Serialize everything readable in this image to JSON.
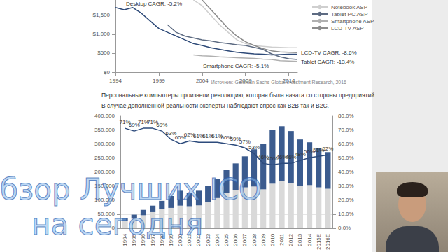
{
  "document": {
    "source": "Источник: Goldman Sachs Global Investment Research, 2016",
    "paragraph": [
      "Персональные компьютеры произвели революцию, которая была начата со стороны предприятий.",
      "В случае дополненной реальности эксперты наблюдают спрос как B2B так и B2C."
    ],
    "overlay": [
      "бзор Лучших ICO",
      "на сегодня"
    ]
  },
  "chart_data": [
    {
      "type": "line",
      "series": [
        {
          "color": "#2e4a78",
          "x": [
            1994,
            1995,
            1996,
            1997,
            1998,
            1999,
            2000,
            2001,
            2002,
            2003,
            2004,
            2005,
            2006,
            2007,
            2008,
            2009,
            2010,
            2011,
            2012,
            2013,
            2014,
            2015
          ],
          "values": [
            1700,
            1640,
            1700,
            1550,
            1350,
            1150,
            1050,
            950,
            850,
            750,
            700,
            640,
            600,
            560,
            520,
            500,
            480,
            470,
            450,
            460,
            470,
            470
          ]
        },
        {
          "name": "Notebook ASP",
          "color": "#cfcfcf",
          "x": [
            2003,
            2004,
            2005,
            2006,
            2007,
            2008,
            2009,
            2010,
            2011,
            2012,
            2013,
            2014,
            2015
          ],
          "values": [
            1900,
            1750,
            1500,
            1250,
            1050,
            850,
            750,
            700,
            680,
            660,
            650,
            640,
            640
          ]
        },
        {
          "name": "Tablet PC ASP",
          "color": "#5d6b82",
          "x": [
            2000,
            2001,
            2002,
            2003,
            2004,
            2005,
            2006,
            2007,
            2008,
            2009,
            2010,
            2011,
            2012,
            2013,
            2014,
            2015
          ],
          "values": [
            1250,
            1050,
            950,
            900,
            850,
            820,
            780,
            750,
            720,
            700,
            650,
            600,
            480,
            400,
            350,
            330
          ]
        },
        {
          "name": "Smartphone ASP",
          "color": "#b0b0b0",
          "x": [
            2003,
            2004,
            2005,
            2006,
            2007,
            2008,
            2009,
            2010,
            2011,
            2012,
            2013,
            2014,
            2015
          ],
          "values": [
            450,
            430,
            420,
            400,
            390,
            380,
            370,
            360,
            340,
            330,
            300,
            290,
            280
          ]
        },
        {
          "name": "LCD-TV ASP",
          "color": "#8c8c8c",
          "x": [
            2004,
            2005,
            2006,
            2007,
            2008,
            2009,
            2010,
            2011,
            2012,
            2013,
            2014,
            2015
          ],
          "values": [
            1900,
            1650,
            1400,
            1150,
            950,
            800,
            700,
            620,
            560,
            530,
            520,
            510
          ]
        }
      ],
      "xlim": [
        1994,
        2015
      ],
      "xticks": [
        1994,
        1999,
        2004,
        2009,
        2014
      ],
      "ylim": [
        0,
        1900
      ],
      "yticks": [
        {
          "value": 0,
          "label": "$0"
        },
        {
          "value": 500,
          "label": "$500"
        },
        {
          "value": 1000,
          "label": "$1,000"
        },
        {
          "value": 1500,
          "label": "$1,500"
        }
      ],
      "annotations": [
        "Desktop CAGR: -5.2%",
        "LCD-TV CAGR: -8.6%",
        "Tablet CAGR: -13.4%",
        "Smartphone CAGR: -5.1%"
      ],
      "grid": false,
      "legend": "top-right"
    },
    {
      "type": "bar",
      "stacked": true,
      "categories": [
        "1994",
        "1995",
        "1996",
        "1997",
        "1998",
        "1999",
        "2000",
        "2001",
        "2002",
        "2003",
        "2004",
        "2005",
        "2006",
        "2007",
        "2008",
        "2009",
        "2010",
        "2011",
        "2012",
        "2013",
        "2014",
        "2015E",
        "2016E"
      ],
      "series": [
        {
          "color": "#d9d9d9",
          "values": [
            26000,
            34000,
            46000,
            57000,
            67000,
            72000,
            80000,
            78000,
            81000,
            92000,
            107000,
            124000,
            136000,
            145000,
            148000,
            138000,
            158000,
            167000,
            159000,
            151000,
            153000,
            145000,
            140000
          ]
        },
        {
          "color": "#3b5b8e",
          "values": [
            10000,
            14000,
            19000,
            23000,
            30000,
            42000,
            53000,
            48000,
            52000,
            58000,
            68000,
            82000,
            94000,
            110000,
            132000,
            162000,
            192000,
            195000,
            186000,
            164000,
            152000,
            140000,
            130000
          ]
        },
        {
          "type": "line",
          "axis": "y2",
          "color": "#2d4b7c",
          "values": [
            71,
            69,
            71,
            71,
            69,
            63,
            60,
            62,
            61,
            61,
            61,
            60,
            59,
            57,
            53,
            46,
            45,
            46,
            46,
            48,
            50,
            51,
            52
          ],
          "value_labels": [
            "71%",
            "69%",
            "71%",
            "71%",
            "69%",
            "63%",
            "60%",
            "62%",
            "61%",
            "61%",
            "61%",
            "60%",
            "59%",
            "57%",
            "53%",
            "46%",
            "45%",
            "46%",
            "46%",
            "48%",
            "50%",
            "51%",
            "52%"
          ]
        }
      ],
      "ylim": [
        0,
        400000
      ],
      "yticks": [
        0,
        {
          "value": 50000,
          "label": "50,000"
        },
        {
          "value": 100000,
          "label": "100,000"
        },
        {
          "value": 150000,
          "label": "150,000"
        },
        {
          "value": 200000,
          "label": "200,000"
        },
        {
          "value": 250000,
          "label": "250,000"
        },
        {
          "value": 300000,
          "label": "300,000"
        },
        {
          "value": 350000,
          "label": "350,000"
        },
        {
          "value": 400000,
          "label": "400,000"
        }
      ],
      "y2lim": [
        0,
        80
      ],
      "y2ticks": [
        {
          "value": 0,
          "label": "0.0%"
        },
        {
          "value": 10,
          "label": "10.0%"
        },
        {
          "value": 20,
          "label": "20.0%"
        },
        {
          "value": 30,
          "label": "30.0%"
        },
        {
          "value": 40,
          "label": "40.0%"
        },
        {
          "value": 50,
          "label": "50.0%"
        },
        {
          "value": 60,
          "label": "60.0%"
        },
        {
          "value": 70,
          "label": "70.0%"
        },
        {
          "value": 80,
          "label": "80.0%"
        }
      ],
      "grid": true,
      "data_labels": true
    }
  ]
}
